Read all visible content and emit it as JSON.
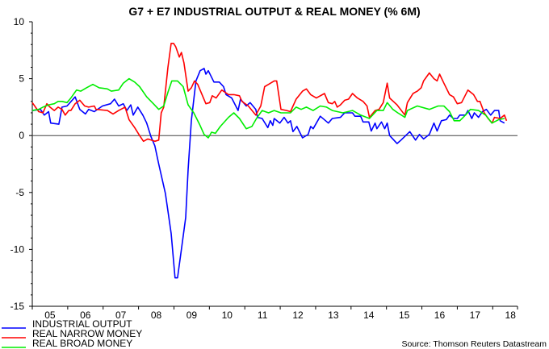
{
  "chart_data": {
    "type": "line",
    "title": "G7 + E7 INDUSTRIAL OUTPUT & REAL MONEY (% 6M)",
    "source": "Source: Thomson Reuters Datastream",
    "xlabel": "",
    "ylabel": "",
    "xlim": [
      2005,
      2018.7
    ],
    "ylim": [
      -15,
      10
    ],
    "y_ticks": [
      10,
      5,
      0,
      -5,
      -10,
      -15
    ],
    "y_tick_labels": [
      "10",
      "5",
      "0",
      "-5",
      "-10",
      "-15"
    ],
    "x_tick_labels": [
      "05",
      "06",
      "07",
      "08",
      "09",
      "10",
      "11",
      "12",
      "13",
      "14",
      "15",
      "16",
      "17",
      "18"
    ],
    "x_tick_years": [
      2005,
      2006,
      2007,
      2008,
      2009,
      2010,
      2011,
      2012,
      2013,
      2014,
      2015,
      2016,
      2017,
      2018
    ],
    "zero_line": true,
    "grid": false,
    "legend_position": "bottom-left",
    "series": [
      {
        "name": "INDUSTRIAL OUTPUT",
        "color": "#0000ff",
        "points": [
          [
            2005.02,
            2.2
          ],
          [
            2005.23,
            2.3
          ],
          [
            2005.34,
            1.8
          ],
          [
            2005.46,
            2.1
          ],
          [
            2005.52,
            1.1
          ],
          [
            2005.75,
            1.0
          ],
          [
            2005.84,
            2.5
          ],
          [
            2005.98,
            2.6
          ],
          [
            2006.21,
            3.4
          ],
          [
            2006.34,
            2.3
          ],
          [
            2006.5,
            1.9
          ],
          [
            2006.59,
            2.3
          ],
          [
            2006.75,
            2.1
          ],
          [
            2006.98,
            2.6
          ],
          [
            2007.21,
            2.8
          ],
          [
            2007.32,
            3.2
          ],
          [
            2007.44,
            2.6
          ],
          [
            2007.57,
            2.8
          ],
          [
            2007.67,
            2.2
          ],
          [
            2007.78,
            2.7
          ],
          [
            2007.85,
            1.8
          ],
          [
            2007.98,
            2.5
          ],
          [
            2008.12,
            1.8
          ],
          [
            2008.23,
            1.1
          ],
          [
            2008.35,
            -0.1
          ],
          [
            2008.46,
            -0.9
          ],
          [
            2008.57,
            -2.5
          ],
          [
            2008.76,
            -5.1
          ],
          [
            2008.92,
            -8.6
          ],
          [
            2009.03,
            -12.5
          ],
          [
            2009.1,
            -12.5
          ],
          [
            2009.21,
            -10.0
          ],
          [
            2009.33,
            -7.2
          ],
          [
            2009.4,
            -3.0
          ],
          [
            2009.49,
            1.3
          ],
          [
            2009.62,
            4.8
          ],
          [
            2009.74,
            5.7
          ],
          [
            2009.85,
            5.9
          ],
          [
            2009.9,
            5.4
          ],
          [
            2009.97,
            5.7
          ],
          [
            2010.13,
            4.7
          ],
          [
            2010.28,
            4.7
          ],
          [
            2010.4,
            4.3
          ],
          [
            2010.47,
            3.6
          ],
          [
            2010.63,
            3.3
          ],
          [
            2010.81,
            2.2
          ],
          [
            2010.88,
            3.2
          ],
          [
            2011.04,
            2.6
          ],
          [
            2011.15,
            2.9
          ],
          [
            2011.31,
            2.3
          ],
          [
            2011.36,
            1.6
          ],
          [
            2011.49,
            1.5
          ],
          [
            2011.65,
            0.7
          ],
          [
            2011.72,
            1.3
          ],
          [
            2011.79,
            0.9
          ],
          [
            2011.83,
            1.5
          ],
          [
            2011.99,
            1.1
          ],
          [
            2012.11,
            1.6
          ],
          [
            2012.22,
            1.1
          ],
          [
            2012.29,
            1.3
          ],
          [
            2012.36,
            0.35
          ],
          [
            2012.47,
            0.8
          ],
          [
            2012.63,
            -0.2
          ],
          [
            2012.79,
            0.1
          ],
          [
            2012.86,
            0.8
          ],
          [
            2012.93,
            0.6
          ],
          [
            2013.13,
            1.7
          ],
          [
            2013.36,
            1.1
          ],
          [
            2013.47,
            1.5
          ],
          [
            2013.7,
            1.6
          ],
          [
            2013.82,
            2.0
          ],
          [
            2014.04,
            2.0
          ],
          [
            2014.11,
            1.7
          ],
          [
            2014.27,
            1.7
          ],
          [
            2014.34,
            1.2
          ],
          [
            2014.5,
            1.2
          ],
          [
            2014.57,
            0.4
          ],
          [
            2014.68,
            1.1
          ],
          [
            2014.73,
            0.6
          ],
          [
            2014.86,
            1.2
          ],
          [
            2014.95,
            0.6
          ],
          [
            2015.02,
            1.1
          ],
          [
            2015.09,
            0.0
          ],
          [
            2015.3,
            -0.7
          ],
          [
            2015.41,
            -0.4
          ],
          [
            2015.66,
            0.35
          ],
          [
            2015.82,
            -0.4
          ],
          [
            2015.93,
            0.1
          ],
          [
            2016.05,
            -0.3
          ],
          [
            2016.21,
            0.1
          ],
          [
            2016.34,
            1.1
          ],
          [
            2016.43,
            0.4
          ],
          [
            2016.55,
            1.3
          ],
          [
            2016.69,
            1.4
          ],
          [
            2016.78,
            1.8
          ],
          [
            2016.89,
            1.5
          ],
          [
            2017.0,
            1.5
          ],
          [
            2017.07,
            1.8
          ],
          [
            2017.23,
            1.8
          ],
          [
            2017.3,
            2.2
          ],
          [
            2017.41,
            1.5
          ],
          [
            2017.48,
            2.0
          ],
          [
            2017.6,
            1.6
          ],
          [
            2017.71,
            2.1
          ],
          [
            2017.82,
            2.3
          ],
          [
            2017.94,
            1.8
          ],
          [
            2018.05,
            2.2
          ],
          [
            2018.17,
            2.2
          ],
          [
            2018.21,
            1.3
          ],
          [
            2018.33,
            1.1
          ]
        ]
      },
      {
        "name": "REAL NARROW MONEY",
        "color": "#ff0000",
        "points": [
          [
            2005.0,
            2.9
          ],
          [
            2005.18,
            2.1
          ],
          [
            2005.3,
            2.0
          ],
          [
            2005.41,
            2.8
          ],
          [
            2005.5,
            2.5
          ],
          [
            2005.62,
            2.2
          ],
          [
            2005.73,
            2.5
          ],
          [
            2005.84,
            2.3
          ],
          [
            2005.93,
            1.8
          ],
          [
            2006.03,
            2.2
          ],
          [
            2006.09,
            2.2
          ],
          [
            2006.21,
            2.8
          ],
          [
            2006.34,
            3.1
          ],
          [
            2006.48,
            2.6
          ],
          [
            2006.59,
            2.5
          ],
          [
            2006.75,
            2.6
          ],
          [
            2006.8,
            2.3
          ],
          [
            2007.12,
            2.2
          ],
          [
            2007.28,
            1.9
          ],
          [
            2007.44,
            2.2
          ],
          [
            2007.62,
            2.5
          ],
          [
            2007.73,
            1.4
          ],
          [
            2007.89,
            0.7
          ],
          [
            2008.03,
            0.0
          ],
          [
            2008.14,
            -0.5
          ],
          [
            2008.26,
            -0.3
          ],
          [
            2008.46,
            -0.5
          ],
          [
            2008.57,
            -0.4
          ],
          [
            2008.64,
            2.0
          ],
          [
            2008.71,
            2.5
          ],
          [
            2008.83,
            6.0
          ],
          [
            2008.92,
            8.1
          ],
          [
            2008.99,
            8.1
          ],
          [
            2009.05,
            7.8
          ],
          [
            2009.15,
            6.9
          ],
          [
            2009.21,
            7.3
          ],
          [
            2009.28,
            6.4
          ],
          [
            2009.4,
            3.9
          ],
          [
            2009.49,
            4.2
          ],
          [
            2009.58,
            4.8
          ],
          [
            2009.67,
            4.5
          ],
          [
            2009.9,
            2.8
          ],
          [
            2010.01,
            2.9
          ],
          [
            2010.08,
            3.5
          ],
          [
            2010.19,
            3.3
          ],
          [
            2010.35,
            4.0
          ],
          [
            2010.54,
            3.6
          ],
          [
            2010.69,
            3.6
          ],
          [
            2010.85,
            3.5
          ],
          [
            2010.92,
            3.0
          ],
          [
            2011.1,
            2.6
          ],
          [
            2011.31,
            1.8
          ],
          [
            2011.45,
            2.6
          ],
          [
            2011.56,
            4.3
          ],
          [
            2011.67,
            4.5
          ],
          [
            2011.83,
            4.8
          ],
          [
            2011.9,
            4.8
          ],
          [
            2012.02,
            2.3
          ],
          [
            2012.18,
            2.2
          ],
          [
            2012.29,
            2.1
          ],
          [
            2012.45,
            3.2
          ],
          [
            2012.63,
            3.9
          ],
          [
            2012.74,
            4.1
          ],
          [
            2012.86,
            3.6
          ],
          [
            2013.02,
            3.3
          ],
          [
            2013.25,
            3.7
          ],
          [
            2013.36,
            2.9
          ],
          [
            2013.47,
            2.8
          ],
          [
            2013.54,
            3.0
          ],
          [
            2013.61,
            2.5
          ],
          [
            2013.7,
            2.7
          ],
          [
            2013.82,
            3.1
          ],
          [
            2013.93,
            3.2
          ],
          [
            2014.04,
            3.7
          ],
          [
            2014.18,
            3.3
          ],
          [
            2014.34,
            3.0
          ],
          [
            2014.45,
            2.6
          ],
          [
            2014.52,
            1.6
          ],
          [
            2014.68,
            2.2
          ],
          [
            2014.79,
            2.3
          ],
          [
            2014.91,
            2.9
          ],
          [
            2015.02,
            4.6
          ],
          [
            2015.09,
            3.3
          ],
          [
            2015.3,
            2.7
          ],
          [
            2015.52,
            1.8
          ],
          [
            2015.59,
            2.9
          ],
          [
            2015.75,
            3.7
          ],
          [
            2015.87,
            3.9
          ],
          [
            2015.98,
            4.2
          ],
          [
            2016.05,
            4.8
          ],
          [
            2016.21,
            5.5
          ],
          [
            2016.34,
            5.0
          ],
          [
            2016.43,
            4.8
          ],
          [
            2016.5,
            5.4
          ],
          [
            2016.62,
            4.6
          ],
          [
            2016.78,
            3.6
          ],
          [
            2016.89,
            3.4
          ],
          [
            2017.0,
            2.8
          ],
          [
            2017.12,
            2.9
          ],
          [
            2017.3,
            4.0
          ],
          [
            2017.46,
            3.6
          ],
          [
            2017.57,
            3.0
          ],
          [
            2017.64,
            3.0
          ],
          [
            2017.76,
            2.0
          ],
          [
            2017.87,
            1.5
          ],
          [
            2017.98,
            1.1
          ],
          [
            2018.05,
            1.6
          ],
          [
            2018.21,
            1.5
          ],
          [
            2018.33,
            1.8
          ],
          [
            2018.39,
            1.3
          ]
        ]
      },
      {
        "name": "REAL BROAD MONEY",
        "color": "#00ee00",
        "points": [
          [
            2005.0,
            2.2
          ],
          [
            2005.18,
            2.3
          ],
          [
            2005.3,
            2.5
          ],
          [
            2005.46,
            2.7
          ],
          [
            2005.62,
            2.8
          ],
          [
            2005.73,
            3.0
          ],
          [
            2005.84,
            3.0
          ],
          [
            2005.98,
            2.9
          ],
          [
            2006.09,
            3.3
          ],
          [
            2006.25,
            4.0
          ],
          [
            2006.37,
            3.9
          ],
          [
            2006.53,
            4.2
          ],
          [
            2006.71,
            4.5
          ],
          [
            2006.89,
            4.2
          ],
          [
            2007.12,
            4.1
          ],
          [
            2007.23,
            3.9
          ],
          [
            2007.44,
            4.0
          ],
          [
            2007.57,
            4.6
          ],
          [
            2007.73,
            5.0
          ],
          [
            2007.89,
            4.7
          ],
          [
            2008.03,
            4.3
          ],
          [
            2008.23,
            3.4
          ],
          [
            2008.42,
            2.8
          ],
          [
            2008.57,
            2.3
          ],
          [
            2008.71,
            2.6
          ],
          [
            2008.83,
            3.8
          ],
          [
            2008.94,
            4.8
          ],
          [
            2009.1,
            4.8
          ],
          [
            2009.26,
            4.3
          ],
          [
            2009.4,
            2.7
          ],
          [
            2009.56,
            2.0
          ],
          [
            2009.72,
            1.0
          ],
          [
            2009.85,
            0.1
          ],
          [
            2009.97,
            -0.2
          ],
          [
            2010.06,
            0.3
          ],
          [
            2010.17,
            0.2
          ],
          [
            2010.31,
            0.8
          ],
          [
            2010.54,
            1.6
          ],
          [
            2010.69,
            2.0
          ],
          [
            2010.85,
            1.5
          ],
          [
            2011.04,
            0.6
          ],
          [
            2011.2,
            0.8
          ],
          [
            2011.33,
            1.5
          ],
          [
            2011.49,
            2.2
          ],
          [
            2011.67,
            2.0
          ],
          [
            2011.83,
            2.2
          ],
          [
            2012.02,
            2.0
          ],
          [
            2012.29,
            2.0
          ],
          [
            2012.45,
            2.5
          ],
          [
            2012.59,
            2.3
          ],
          [
            2012.74,
            2.5
          ],
          [
            2012.93,
            2.2
          ],
          [
            2013.13,
            2.6
          ],
          [
            2013.31,
            2.5
          ],
          [
            2013.47,
            2.2
          ],
          [
            2013.77,
            2.0
          ],
          [
            2014.04,
            2.2
          ],
          [
            2014.27,
            1.8
          ],
          [
            2014.52,
            1.5
          ],
          [
            2014.73,
            2.2
          ],
          [
            2014.91,
            2.2
          ],
          [
            2015.02,
            2.9
          ],
          [
            2015.18,
            2.3
          ],
          [
            2015.32,
            2.0
          ],
          [
            2015.52,
            1.6
          ],
          [
            2015.59,
            2.2
          ],
          [
            2015.87,
            2.6
          ],
          [
            2016.21,
            2.3
          ],
          [
            2016.46,
            2.6
          ],
          [
            2016.62,
            2.6
          ],
          [
            2016.78,
            2.1
          ],
          [
            2016.91,
            1.3
          ],
          [
            2017.07,
            1.3
          ],
          [
            2017.23,
            1.8
          ],
          [
            2017.37,
            2.3
          ],
          [
            2017.6,
            2.2
          ],
          [
            2017.8,
            1.8
          ],
          [
            2017.98,
            1.1
          ],
          [
            2018.17,
            1.4
          ],
          [
            2018.33,
            1.5
          ]
        ]
      }
    ]
  }
}
